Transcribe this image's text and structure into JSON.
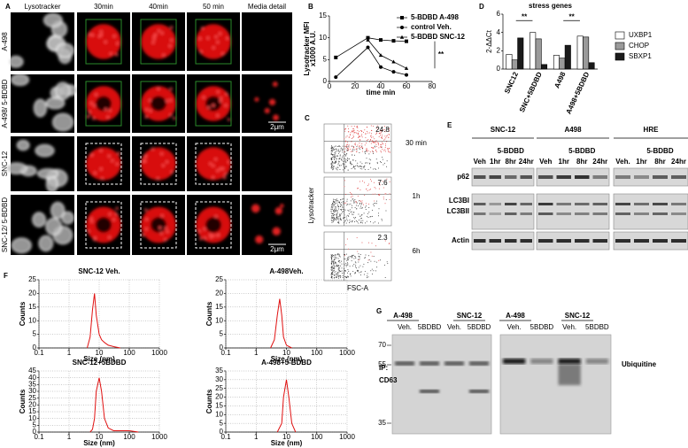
{
  "panel_labels": [
    "A",
    "B",
    "C",
    "D",
    "E",
    "F",
    "G"
  ],
  "panel_a": {
    "column_headers": [
      "Lysotracker",
      "30min",
      "40min",
      "50 min",
      "Media detail"
    ],
    "row_labels": [
      "A-498",
      "A-498/ 5-BDBD",
      "SNC-12",
      "SNC-12/ 5-BDBD"
    ],
    "scale_labels": [
      "2μm",
      "2μm"
    ]
  },
  "panel_c": {
    "y_label": "Lysotracker",
    "x_label": "FSC-A",
    "time_labels": [
      "30 min",
      "1h",
      "6h"
    ],
    "gate_values": [
      24.8,
      7.6,
      2.3
    ]
  },
  "panel_e": {
    "groups": [
      {
        "name": "SNC-12",
        "treatment": "5-BDBD",
        "lanes": [
          "Veh",
          "1hr",
          "8hr",
          "24hr"
        ]
      },
      {
        "name": "A498",
        "treatment": "5-BDBD",
        "lanes": [
          "Veh",
          "1hr",
          "8hr",
          "24hr"
        ]
      },
      {
        "name": "HRE",
        "treatment": "5-BDBD",
        "lanes": [
          "Veh.",
          "1hr",
          "8hr",
          "24hr"
        ]
      }
    ],
    "band_labels": [
      "p62",
      "LC3BI",
      "LC3BII",
      "Actin"
    ]
  },
  "panel_g": {
    "ip_label": "IP:",
    "ip_target": "CD63",
    "groups": [
      "A-498",
      "SNC-12",
      "A-498",
      "SNC-12"
    ],
    "lanes": [
      "Veh.",
      "5BDBD",
      "Veh.",
      "5BDBD",
      "Veh.",
      "5BDBD",
      "Veh.",
      "5BDBD"
    ],
    "mw_markers": [
      70,
      55,
      35
    ],
    "protein_label": "Ubiquitine"
  },
  "chart_data": [
    {
      "type": "line",
      "y_label": [
        "Lysotracker MFI",
        "x1000 A.U."
      ],
      "x_label": "time min",
      "x": [
        5,
        30,
        40,
        50,
        60
      ],
      "xlim": [
        0,
        80
      ],
      "xticks": [
        0,
        20,
        40,
        60,
        80
      ],
      "ylim": [
        0,
        15
      ],
      "yticks": [
        0,
        5,
        10,
        15
      ],
      "annotation": "**",
      "series": [
        {
          "name": "5-BDBD A-498",
          "color": "#000000",
          "marker": "square",
          "values": [
            5.5,
            10,
            9.5,
            9.3,
            9.2
          ]
        },
        {
          "name": "control Veh.",
          "color": "#000000",
          "marker": "circle",
          "values": [
            1,
            7.8,
            3.3,
            2.2,
            1.5
          ]
        },
        {
          "name": "5-BDBD SNC-12",
          "color": "#000000",
          "marker": "triangle",
          "values": [
            null,
            9.5,
            6,
            4.5,
            3
          ]
        }
      ]
    },
    {
      "type": "bar",
      "title": "stress genes",
      "y_label": "2-ΔΔCt",
      "categories": [
        "SNC12",
        "SNC+5BDBD",
        "A498",
        "A498+5BDBD"
      ],
      "ylim": [
        0,
        6
      ],
      "yticks": [
        0,
        2,
        4,
        6
      ],
      "annotations": [
        "**",
        "**"
      ],
      "series": [
        {
          "name": "UXBP1",
          "color": "#ffffff",
          "values": [
            1.6,
            4.0,
            1.5,
            3.6
          ]
        },
        {
          "name": "CHOP",
          "color": "#9a9a9a",
          "values": [
            1.0,
            3.3,
            1.2,
            3.5
          ]
        },
        {
          "name": "SBXP1",
          "color": "#1a1a1a",
          "values": [
            3.4,
            0.5,
            2.6,
            0.7
          ]
        }
      ]
    },
    {
      "type": "line",
      "title": "SNC-12 Veh.",
      "x_label": "Size (nm)",
      "y_label": "Counts",
      "xscale": "log",
      "grid": true,
      "color": "#e01010",
      "xlim": [
        0.1,
        1000
      ],
      "xticks": [
        0.1,
        1,
        10,
        100,
        1000
      ],
      "ylim": [
        0,
        25
      ],
      "yticks": [
        0,
        5,
        10,
        15,
        20,
        25
      ],
      "x": [
        4,
        5,
        6,
        7,
        8,
        10,
        12,
        15,
        20,
        30,
        50
      ],
      "values": [
        0,
        4,
        14,
        20,
        12,
        5,
        3,
        2,
        1,
        0.5,
        0
      ]
    },
    {
      "type": "line",
      "title": "A-498Veh.",
      "x_label": "Size (nm)",
      "y_label": "Counts",
      "xscale": "log",
      "grid": true,
      "color": "#e01010",
      "xlim": [
        0.1,
        1000
      ],
      "xticks": [
        0.1,
        1,
        10,
        100,
        1000
      ],
      "ylim": [
        0,
        25
      ],
      "yticks": [
        0,
        5,
        10,
        15,
        20,
        25
      ],
      "x": [
        3,
        4,
        5,
        6,
        7,
        8,
        10,
        15
      ],
      "values": [
        0,
        3,
        12,
        18,
        12,
        4,
        1,
        0
      ]
    },
    {
      "type": "line",
      "title": "SNC-12+5BDBD",
      "x_label": "Size (nm)",
      "y_label": "Counts",
      "xscale": "log",
      "grid": true,
      "color": "#e01010",
      "xlim": [
        0.1,
        1000
      ],
      "xticks": [
        0.1,
        1,
        10,
        100,
        1000
      ],
      "ylim": [
        0,
        45
      ],
      "yticks": [
        0,
        5,
        10,
        15,
        20,
        25,
        30,
        35,
        40,
        45
      ],
      "x": [
        5,
        6,
        7,
        8,
        10,
        12,
        15,
        20,
        30,
        100,
        200
      ],
      "values": [
        0,
        2,
        10,
        30,
        40,
        30,
        10,
        3,
        1,
        1,
        0
      ]
    },
    {
      "type": "line",
      "title": "A-498+5-BDBD",
      "x_label": "Size (nm)",
      "y_label": "Counts",
      "xscale": "log",
      "grid": true,
      "color": "#e01010",
      "xlim": [
        0.1,
        1000
      ],
      "xticks": [
        0.1,
        1,
        10,
        100,
        1000
      ],
      "ylim": [
        0,
        35
      ],
      "yticks": [
        0,
        5,
        10,
        15,
        20,
        25,
        30,
        35
      ],
      "x": [
        5,
        7,
        8,
        10,
        12,
        15,
        20
      ],
      "values": [
        0,
        5,
        20,
        30,
        20,
        5,
        0
      ]
    }
  ]
}
